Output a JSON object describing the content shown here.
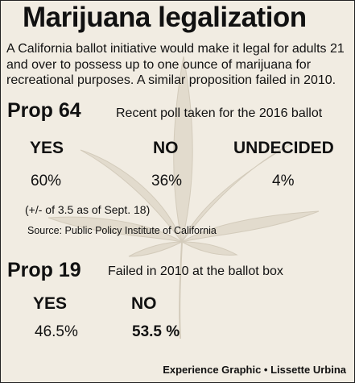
{
  "header": {
    "title": "Marijuana legalization",
    "intro": "A California ballot initiative would make it legal for adults 21 and over to possess up to one ounce of marijuana for recreational purposes. A similar proposition failed in 2010."
  },
  "prop64": {
    "label": "Prop 64",
    "description": "Recent poll taken for the 2016 ballot",
    "note": "(+/- of 3.5 as of Sept. 18)",
    "source": "Source: Public Policy Institute of California"
  },
  "prop19": {
    "label": "Prop 19",
    "description": "Failed in 2010 at the ballot box"
  },
  "credit": "Experience Graphic • Lissette Urbina",
  "chart_data": [
    {
      "type": "table",
      "title": "Prop 64",
      "categories": [
        "YES",
        "NO",
        "UNDECIDED"
      ],
      "values": [
        60,
        36,
        4
      ],
      "labels": [
        "60%",
        "36%",
        "4%"
      ]
    },
    {
      "type": "table",
      "title": "Prop 19",
      "categories": [
        "YES",
        "NO"
      ],
      "values": [
        46.5,
        53.5
      ],
      "labels": [
        "46.5%",
        "53.5 %"
      ]
    }
  ]
}
